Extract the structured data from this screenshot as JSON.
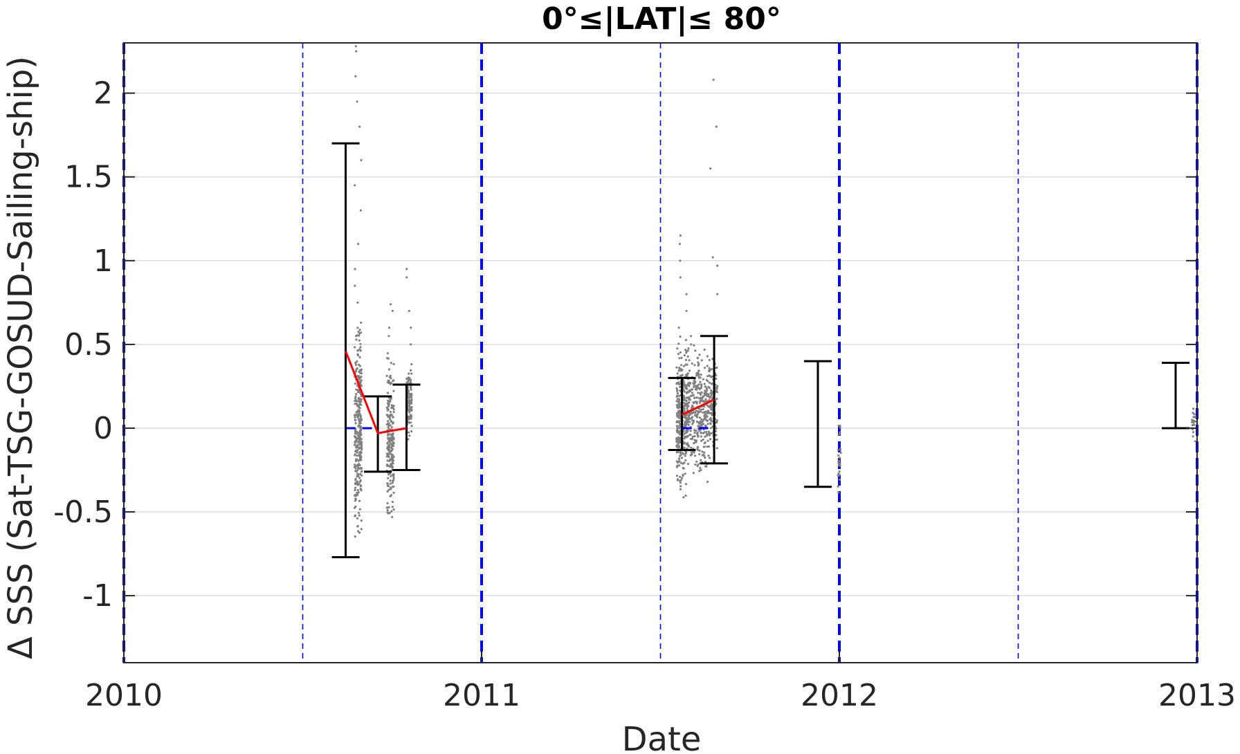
{
  "chart_data": {
    "type": "scatter",
    "title": "0°≤|LAT|≤ 80°",
    "xlabel": "Date",
    "ylabel": "Δ SSS (Sat-TSG-GOSUD-Sailing-ship)",
    "xlim": [
      2010.0,
      2013.0
    ],
    "ylim": [
      -1.4,
      2.3
    ],
    "x_ticks": [
      {
        "value": 2010,
        "label": "2010"
      },
      {
        "value": 2011,
        "label": "2011"
      },
      {
        "value": 2012,
        "label": "2012"
      },
      {
        "value": 2013,
        "label": "2013"
      }
    ],
    "y_ticks": [
      {
        "value": 2,
        "label": "2"
      },
      {
        "value": 1.5,
        "label": "1.5"
      },
      {
        "value": 1,
        "label": "1"
      },
      {
        "value": 0.5,
        "label": "0.5"
      },
      {
        "value": 0,
        "label": "0"
      },
      {
        "value": -0.5,
        "label": "-0.5"
      },
      {
        "value": -1,
        "label": "-1"
      }
    ],
    "grid": true,
    "colors": {
      "scatter": "#808080",
      "errorbar": "#000000",
      "mean_line": "#ff0000",
      "zero_dash": "#0000ff",
      "year_lines": "#0000ff",
      "grid": "#dcdcdc",
      "axis": "#262626"
    },
    "year_lines": [
      2010.0,
      2011.0,
      2012.0,
      2013.0
    ],
    "half_year_lines": [
      2010.5,
      2011.5,
      2012.5
    ],
    "error_bars": [
      {
        "x": 2010.62,
        "low": -0.77,
        "high": 1.7
      },
      {
        "x": 2010.71,
        "low": -0.26,
        "high": 0.19
      },
      {
        "x": 2010.79,
        "low": -0.25,
        "high": 0.26
      },
      {
        "x": 2011.56,
        "low": -0.13,
        "high": 0.3
      },
      {
        "x": 2011.65,
        "low": -0.21,
        "high": 0.55
      },
      {
        "x": 2011.94,
        "low": -0.35,
        "high": 0.4
      },
      {
        "x": 2012.94,
        "low": 0.0,
        "high": 0.39
      }
    ],
    "mean_series": [
      {
        "x": [
          2010.62,
          2010.71,
          2010.79
        ],
        "y": [
          0.46,
          -0.03,
          0.0
        ]
      },
      {
        "x": [
          2011.56,
          2011.65
        ],
        "y": [
          0.08,
          0.17
        ]
      }
    ],
    "zero_dash_segments": [
      {
        "x_start": 2010.62,
        "x_end": 2010.71
      },
      {
        "x_start": 2011.56,
        "x_end": 2011.65
      }
    ],
    "scatter_clusters": [
      {
        "x_start": 2010.645,
        "x_end": 2010.665,
        "y_min": -0.65,
        "y_max": 0.63,
        "n": 320,
        "outliers": [
          2.28,
          2.25,
          2.1,
          1.95,
          1.8,
          1.6,
          1.45,
          1.3,
          1.1,
          0.95,
          0.85,
          0.75
        ]
      },
      {
        "x_start": 2010.735,
        "x_end": 2010.755,
        "y_min": -0.62,
        "y_max": 0.45,
        "n": 230,
        "outliers": [
          0.74,
          0.7,
          0.6,
          0.55
        ]
      },
      {
        "x_start": 2010.79,
        "x_end": 2010.805,
        "y_min": -0.1,
        "y_max": 0.4,
        "n": 110,
        "outliers": [
          0.95,
          0.9,
          0.7,
          0.6,
          0.5
        ]
      },
      {
        "x_start": 2011.545,
        "x_end": 2011.575,
        "y_min": -0.42,
        "y_max": 0.55,
        "n": 340,
        "outliers": [
          1.15,
          1.1,
          1.0,
          0.9,
          0.8,
          0.7,
          0.6
        ]
      },
      {
        "x_start": 2011.575,
        "x_end": 2011.635,
        "y_min": -0.32,
        "y_max": 0.5,
        "n": 340,
        "outliers": [
          0.55,
          0.5
        ]
      },
      {
        "x_start": 2011.635,
        "x_end": 2011.66,
        "y_min": -0.18,
        "y_max": 0.45,
        "n": 130,
        "outliers": [
          2.08,
          1.8,
          1.55,
          1.02,
          0.97,
          0.8
        ]
      },
      {
        "x_start": 2011.995,
        "x_end": 2012.005,
        "y_min": -0.48,
        "y_max": 0.1,
        "n": 25,
        "outliers": []
      },
      {
        "x_start": 2012.985,
        "x_end": 2012.995,
        "y_min": -0.1,
        "y_max": 0.2,
        "n": 25,
        "outliers": []
      }
    ]
  }
}
